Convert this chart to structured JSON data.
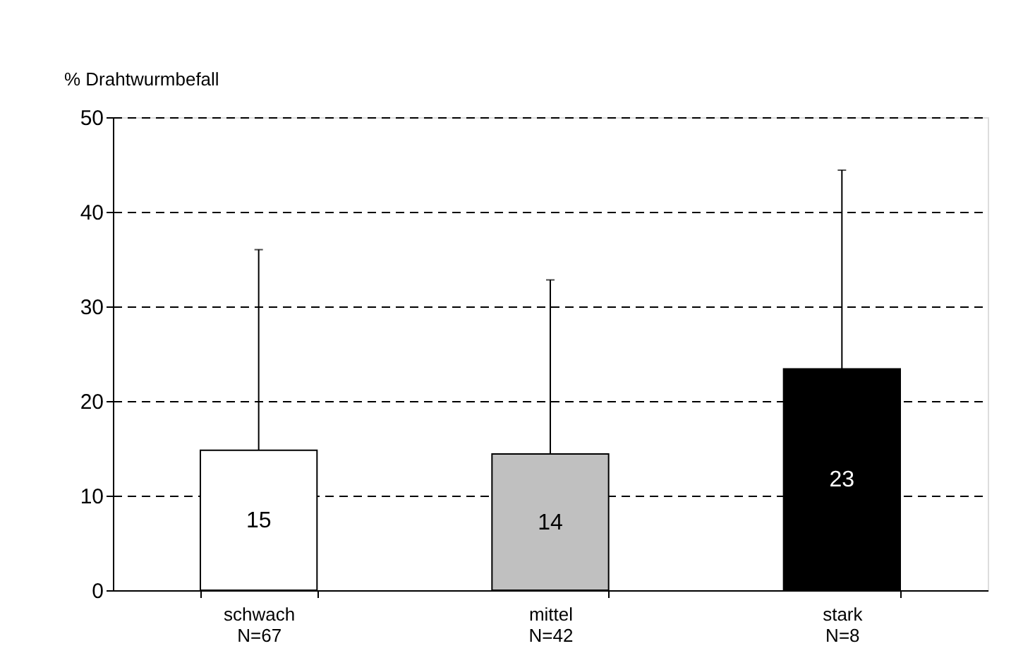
{
  "chart_data": {
    "type": "bar",
    "ylabel": "% Drahtwurmbefall",
    "categories": [
      "schwach\nN=67",
      "mittel\nN=42",
      "stark\nN=8"
    ],
    "values": [
      14.8,
      14.4,
      23.4
    ],
    "colors": [
      "#ffffff",
      "#c0c0c0",
      "#000000"
    ],
    "value_labels": [
      "15",
      "14",
      "23"
    ],
    "errors": [
      [
        14.8,
        36.0
      ],
      [
        14.4,
        32.8
      ],
      [
        23.4,
        44.4
      ]
    ],
    "ylim": [
      0,
      50
    ],
    "yticks": [
      0,
      10,
      20,
      30,
      40,
      50
    ],
    "grid": "y"
  }
}
